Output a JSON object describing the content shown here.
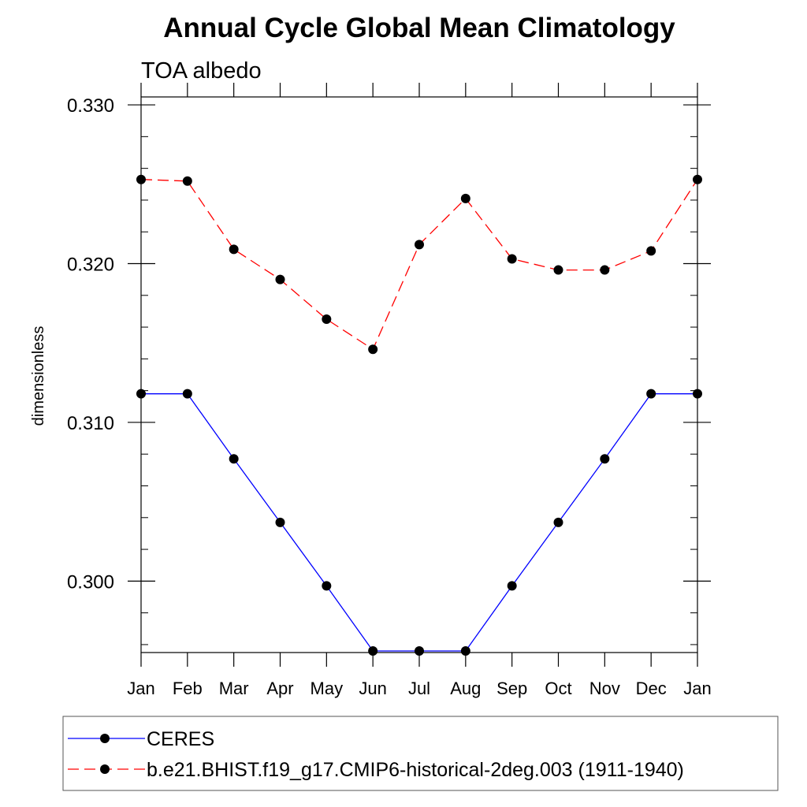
{
  "chart_data": {
    "type": "line",
    "title": "Annual Cycle Global Mean Climatology",
    "subtitle": "TOA albedo",
    "xlabel": "",
    "ylabel": "dimensionless",
    "categories": [
      "Jan",
      "Feb",
      "Mar",
      "Apr",
      "May",
      "Jun",
      "Jul",
      "Aug",
      "Sep",
      "Oct",
      "Nov",
      "Dec",
      "Jan"
    ],
    "ylim": [
      0.2955,
      0.3305
    ],
    "yticks": [
      0.3,
      0.31,
      0.32,
      0.33
    ],
    "ytick_labels": [
      "0.300",
      "0.310",
      "0.320",
      "0.330"
    ],
    "grid": false,
    "legend_position": "bottom",
    "series": [
      {
        "name": "CERES",
        "color": "#0000ff",
        "line_style": "solid",
        "marker": "filled-circle",
        "values": [
          0.3118,
          0.3118,
          0.3077,
          0.3037,
          0.2997,
          0.2956,
          0.2956,
          0.2956,
          0.2997,
          0.3037,
          0.3077,
          0.3118,
          0.3118
        ]
      },
      {
        "name": "b.e21.BHIST.f19_g17.CMIP6-historical-2deg.003 (1911-1940)",
        "color": "#ff0000",
        "line_style": "dashed",
        "marker": "filled-circle",
        "values": [
          0.3253,
          0.3252,
          0.3209,
          0.319,
          0.3165,
          0.3146,
          0.3212,
          0.3241,
          0.3203,
          0.3196,
          0.3196,
          0.3208,
          0.3253
        ]
      }
    ]
  }
}
